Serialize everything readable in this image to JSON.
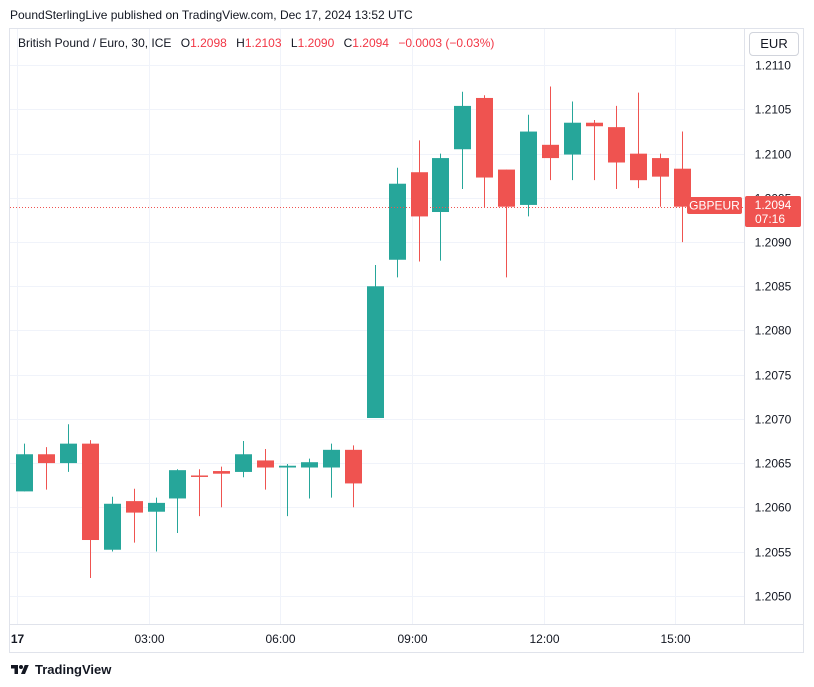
{
  "header": {
    "published_line": "PoundSterlingLive published on TradingView.com, Dec 17, 2024 13:52 UTC"
  },
  "legend": {
    "symbol": "British Pound / Euro, 30, ICE",
    "o_label": "O",
    "o_value": "1.2098",
    "h_label": "H",
    "h_value": "1.2103",
    "l_label": "L",
    "l_value": "1.2090",
    "c_label": "C",
    "c_value": "1.2094",
    "change": "−0.0003 (−0.03%)"
  },
  "currency_button": "EUR",
  "footer": {
    "brand": "TradingView"
  },
  "colors": {
    "up": "#26a69a",
    "down": "#ef5350",
    "grid": "#f0f3fa",
    "axis_text": "#131722"
  },
  "chart_data": {
    "type": "candlestick",
    "y_ticks": [
      "1.2050",
      "1.2055",
      "1.2060",
      "1.2065",
      "1.2070",
      "1.2075",
      "1.2080",
      "1.2085",
      "1.2090",
      "1.2095",
      "1.2100",
      "1.2105",
      "1.2110"
    ],
    "ylim": [
      1.20468,
      1.21141
    ],
    "x_ticks": [
      {
        "label": "17",
        "bar": -0.3,
        "bold": true
      },
      {
        "label": "03:00",
        "bar": 5.7
      },
      {
        "label": "06:00",
        "bar": 11.7
      },
      {
        "label": "09:00",
        "bar": 17.7
      },
      {
        "label": "12:00",
        "bar": 23.7
      },
      {
        "label": "15:00",
        "bar": 29.7
      }
    ],
    "price_label": {
      "symbol": "GBPEUR",
      "price": "1.2094",
      "countdown": "07:16",
      "value": 1.2094
    },
    "candles": [
      {
        "o": 1.20618,
        "h": 1.20672,
        "l": 1.20618,
        "c": 1.2066
      },
      {
        "o": 1.2066,
        "h": 1.20668,
        "l": 1.2062,
        "c": 1.2065
      },
      {
        "o": 1.2065,
        "h": 1.20694,
        "l": 1.2064,
        "c": 1.20672
      },
      {
        "o": 1.20672,
        "h": 1.20676,
        "l": 1.2052,
        "c": 1.20563
      },
      {
        "o": 1.20552,
        "h": 1.20612,
        "l": 1.2055,
        "c": 1.20604
      },
      {
        "o": 1.20607,
        "h": 1.20621,
        "l": 1.2056,
        "c": 1.20594
      },
      {
        "o": 1.20595,
        "h": 1.20611,
        "l": 1.2055,
        "c": 1.20605
      },
      {
        "o": 1.2061,
        "h": 1.20643,
        "l": 1.20571,
        "c": 1.20642
      },
      {
        "o": 1.20636,
        "h": 1.20643,
        "l": 1.2059,
        "c": 1.20635
      },
      {
        "o": 1.20641,
        "h": 1.20646,
        "l": 1.206,
        "c": 1.20638
      },
      {
        "o": 1.2064,
        "h": 1.20675,
        "l": 1.20634,
        "c": 1.2066
      },
      {
        "o": 1.20653,
        "h": 1.20666,
        "l": 1.2062,
        "c": 1.20645
      },
      {
        "o": 1.20645,
        "h": 1.20649,
        "l": 1.2059,
        "c": 1.20647
      },
      {
        "o": 1.20645,
        "h": 1.20655,
        "l": 1.2061,
        "c": 1.20651
      },
      {
        "o": 1.20645,
        "h": 1.20672,
        "l": 1.20611,
        "c": 1.20665
      },
      {
        "o": 1.20665,
        "h": 1.2067,
        "l": 1.206,
        "c": 1.20627
      },
      {
        "o": 1.20701,
        "h": 1.20874,
        "l": 1.20701,
        "c": 1.2085
      },
      {
        "o": 1.2088,
        "h": 1.20984,
        "l": 1.2086,
        "c": 1.20966
      },
      {
        "o": 1.20979,
        "h": 1.21015,
        "l": 1.20878,
        "c": 1.20929
      },
      {
        "o": 1.20934,
        "h": 1.21,
        "l": 1.20879,
        "c": 1.20995
      },
      {
        "o": 1.21005,
        "h": 1.2107,
        "l": 1.2096,
        "c": 1.21054
      },
      {
        "o": 1.21063,
        "h": 1.21066,
        "l": 1.20939,
        "c": 1.20973
      },
      {
        "o": 1.20982,
        "h": 1.20982,
        "l": 1.2086,
        "c": 1.2094
      },
      {
        "o": 1.20942,
        "h": 1.21044,
        "l": 1.20929,
        "c": 1.21025
      },
      {
        "o": 1.2101,
        "h": 1.21076,
        "l": 1.2097,
        "c": 1.20995
      },
      {
        "o": 1.20999,
        "h": 1.21059,
        "l": 1.2097,
        "c": 1.21035
      },
      {
        "o": 1.21035,
        "h": 1.21038,
        "l": 1.2097,
        "c": 1.21031
      },
      {
        "o": 1.2103,
        "h": 1.21054,
        "l": 1.2096,
        "c": 1.2099
      },
      {
        "o": 1.21,
        "h": 1.21069,
        "l": 1.20961,
        "c": 1.2097
      },
      {
        "o": 1.20995,
        "h": 1.21,
        "l": 1.2094,
        "c": 1.20974
      },
      {
        "o": 1.20983,
        "h": 1.21025,
        "l": 1.209,
        "c": 1.2094
      }
    ]
  }
}
